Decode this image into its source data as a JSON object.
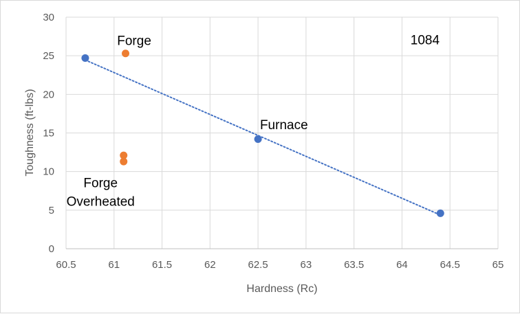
{
  "chart_data": {
    "type": "scatter",
    "title": "",
    "xlabel": "Hardness (Rc)",
    "ylabel": "Toughness (ft-lbs)",
    "xlim": [
      60.5,
      65
    ],
    "ylim": [
      0,
      30
    ],
    "xticks": [
      60.5,
      61,
      61.5,
      62,
      62.5,
      63,
      63.5,
      64,
      64.5,
      65
    ],
    "yticks": [
      0,
      5,
      10,
      15,
      20,
      25,
      30
    ],
    "grid": true,
    "series": [
      {
        "name": "Furnace",
        "color": "#4472c4",
        "points": [
          {
            "x": 60.7,
            "y": 24.7
          },
          {
            "x": 62.5,
            "y": 14.2
          },
          {
            "x": 64.4,
            "y": 4.6
          }
        ],
        "trendline": {
          "type": "linear",
          "style": "dotted",
          "color": "#4472c4"
        }
      },
      {
        "name": "Forge",
        "color": "#ed7d31",
        "points": [
          {
            "x": 61.12,
            "y": 25.3
          },
          {
            "x": 61.1,
            "y": 12.1
          },
          {
            "x": 61.1,
            "y": 11.3
          }
        ]
      }
    ],
    "annotations": [
      {
        "text": "Forge",
        "x": 61.21,
        "y": 27.0,
        "anchor": "middle"
      },
      {
        "text": "1084",
        "x": 64.24,
        "y": 27.1,
        "anchor": "middle"
      },
      {
        "text": "Furnace",
        "x": 62.77,
        "y": 16.1,
        "anchor": "middle"
      },
      {
        "text": "Forge",
        "x": 60.86,
        "y": 8.6,
        "anchor": "middle"
      },
      {
        "text": "Overheated",
        "x": 60.86,
        "y": 6.2,
        "anchor": "middle"
      }
    ]
  }
}
